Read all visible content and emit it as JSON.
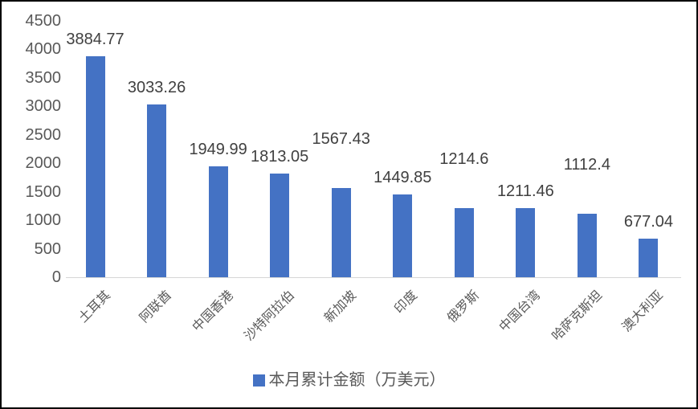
{
  "chart_data": {
    "type": "bar",
    "title": "",
    "categories": [
      "土耳其",
      "阿联酋",
      "中国香港",
      "沙特阿拉伯",
      "新加坡",
      "印度",
      "俄罗斯",
      "中国台湾",
      "哈萨克斯坦",
      "澳大利亚"
    ],
    "series": [
      {
        "name": "本月累计金额（万美元）",
        "values": [
          3884.77,
          3033.26,
          1949.99,
          1813.05,
          1567.43,
          1449.85,
          1214.6,
          1211.46,
          1112.4,
          677.04
        ]
      }
    ],
    "data_labels": [
      "3884.77",
      "3033.26",
      "1949.99",
      "1813.05",
      "1567.43",
      "1449.85",
      "1214.6",
      "1211.46",
      "1112.4",
      "677.04"
    ],
    "label_raised": [
      false,
      false,
      false,
      false,
      true,
      false,
      true,
      false,
      true,
      false
    ],
    "y_ticks": [
      0,
      500,
      1000,
      1500,
      2000,
      2500,
      3000,
      3500,
      4000,
      4500
    ],
    "ylim": [
      0,
      4500
    ],
    "xlabel": "",
    "ylabel": "",
    "grid": false,
    "legend_position": "bottom",
    "bar_color": "#4472C4",
    "axis_text_color": "#595959",
    "data_label_color": "#404040",
    "axis_line_color": "#D6D6D6"
  },
  "legend": {
    "label": "本月累计金额（万美元）",
    "swatch_color": "#4472C4"
  }
}
